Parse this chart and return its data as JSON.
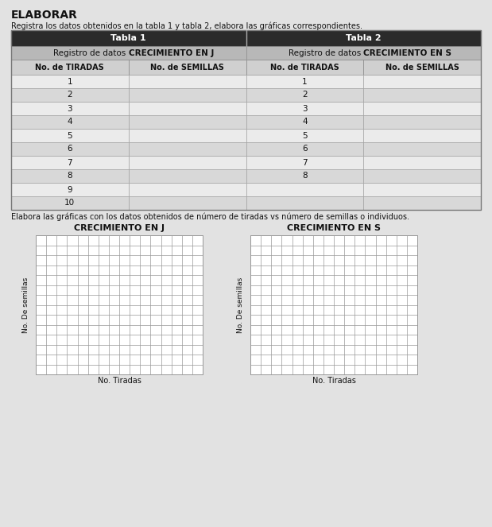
{
  "title": "ELABORAR",
  "subtitle": "Registra los datos obtenidos en la tabla 1 y tabla 2, elabora las gráficas correspondientes.",
  "tabla1_header": "Tabla 1",
  "tabla2_header": "Tabla 2",
  "tabla1_subheader_normal": "Registro de datos ",
  "tabla1_subheader_bold": "CRECIMIENTO EN J",
  "tabla2_subheader_normal": "Registro de datos ",
  "tabla2_subheader_bold": "CRECIMIENTO EN S",
  "col1_header": "No. de TIRADAS",
  "col2_header": "No. de SEMILLAS",
  "col3_header": "No. de TIRADAS",
  "col4_header": "No. de SEMILLAS",
  "tabla1_rows": [
    1,
    2,
    3,
    4,
    5,
    6,
    7,
    8,
    9,
    10
  ],
  "tabla2_rows": [
    1,
    2,
    3,
    4,
    5,
    6,
    7,
    8
  ],
  "graph_instruction": "Elabora las gráficas con los datos obtenidos de número de tiradas vs número de semillas o individuos.",
  "graph1_title": "CRECIMIENTO EN J",
  "graph2_title": "CRECIMIENTO EN S",
  "graph_ylabel": "No. De semillas",
  "graph_xlabel": "No. Tiradas",
  "background_color": "#e2e2e2",
  "table_header_bg": "#2b2b2b",
  "table_header_fg": "#ffffff",
  "table_subheader_bg": "#b8b8b8",
  "table_col_header_bg": "#d0d0d0",
  "table_row_bg_odd": "#ebebeb",
  "table_row_bg_even": "#d8d8d8",
  "table_border_color": "#888888",
  "graph_grid_color": "#999999",
  "graph_bg": "#ffffff",
  "graph_grid_cols": 16,
  "graph_grid_rows": 14,
  "title_fontsize": 10,
  "subtitle_fontsize": 7,
  "header_fontsize": 8,
  "subheader_fontsize": 7.5,
  "col_header_fontsize": 7,
  "row_fontsize": 7.5,
  "instr_fontsize": 7,
  "graph_title_fontsize": 8,
  "graph_label_fontsize": 6.5
}
